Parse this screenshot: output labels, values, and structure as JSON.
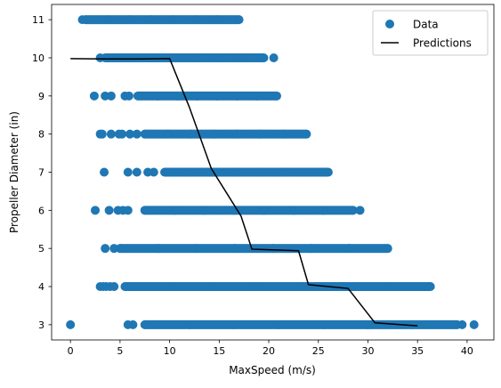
{
  "chart_data": {
    "type": "scatter",
    "title": "",
    "xlabel": "MaxSpeed (m/s)",
    "ylabel": "Propeller Diameter (in)",
    "xlim": [
      -1.9,
      42.7
    ],
    "ylim": [
      2.6,
      11.4
    ],
    "x_ticks": [
      0,
      5,
      10,
      15,
      20,
      25,
      30,
      35,
      40
    ],
    "y_ticks": [
      3,
      4,
      5,
      6,
      7,
      8,
      9,
      10,
      11
    ],
    "grid": false,
    "legend_position": "top-right",
    "colors": {
      "data": "#1f77b4",
      "predictions": "#000000"
    },
    "series": [
      {
        "name": "Data",
        "kind": "scatter",
        "rows": [
          {
            "y": 11,
            "dense_range": [
              1.5,
              17.0
            ],
            "isolated_x": [
              1.2
            ]
          },
          {
            "y": 10,
            "dense_range": [
              3.5,
              19.5
            ],
            "isolated_x": [
              3.0,
              20.5
            ]
          },
          {
            "y": 9,
            "dense_range": [
              6.8,
              20.8
            ],
            "isolated_x": [
              2.4,
              3.5,
              4.1,
              5.5,
              5.9
            ]
          },
          {
            "y": 8,
            "dense_range": [
              7.5,
              23.8
            ],
            "isolated_x": [
              3.0,
              3.2,
              4.1,
              4.9,
              5.2,
              6.0,
              6.7
            ]
          },
          {
            "y": 7,
            "dense_range": [
              9.5,
              26.0
            ],
            "isolated_x": [
              3.4,
              5.8,
              6.7,
              7.8,
              8.4
            ]
          },
          {
            "y": 6,
            "dense_range": [
              7.5,
              28.5
            ],
            "isolated_x": [
              2.5,
              3.9,
              4.8,
              5.3,
              5.8,
              29.2
            ]
          },
          {
            "y": 5,
            "dense_range": [
              5.0,
              32.0
            ],
            "isolated_x": [
              3.5,
              4.4
            ]
          },
          {
            "y": 4,
            "dense_range": [
              5.5,
              36.3
            ],
            "isolated_x": [
              3.0,
              3.3,
              3.6,
              4.0,
              4.4
            ]
          },
          {
            "y": 3,
            "dense_range": [
              7.5,
              39.0
            ],
            "isolated_x": [
              0.0,
              5.8,
              6.3,
              39.5,
              40.7
            ]
          }
        ]
      },
      {
        "name": "Predictions",
        "kind": "line",
        "x": [
          0,
          3.5,
          7,
          10,
          12,
          14.2,
          17.2,
          18.3,
          23,
          24,
          28,
          30.7,
          35
        ],
        "y": [
          9.98,
          9.97,
          9.97,
          9.98,
          8.7,
          7.1,
          5.85,
          4.98,
          4.94,
          4.05,
          3.95,
          3.05,
          2.97
        ]
      }
    ]
  }
}
